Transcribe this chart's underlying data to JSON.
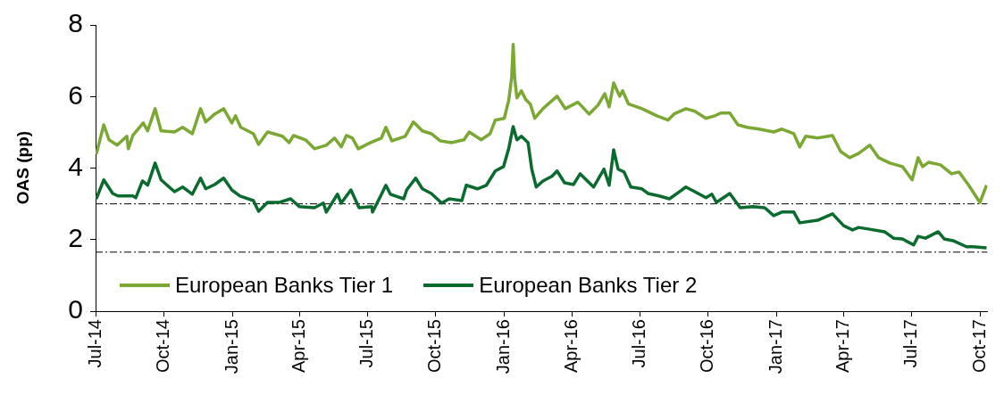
{
  "chart_data": {
    "type": "line",
    "ylabel": "OAS (pp)",
    "xlim": [
      "2014-07-01",
      "2017-10-11"
    ],
    "xticks": [
      {
        "value": "2014-07-01",
        "label": "Jul-14"
      },
      {
        "value": "2014-10-01",
        "label": "Oct-14"
      },
      {
        "value": "2015-01-01",
        "label": "Jan-15"
      },
      {
        "value": "2015-04-01",
        "label": "Apr-15"
      },
      {
        "value": "2015-07-01",
        "label": "Jul-15"
      },
      {
        "value": "2015-10-01",
        "label": "Oct-15"
      },
      {
        "value": "2016-01-01",
        "label": "Jan-16"
      },
      {
        "value": "2016-04-01",
        "label": "Apr-16"
      },
      {
        "value": "2016-07-01",
        "label": "Jul-16"
      },
      {
        "value": "2016-10-01",
        "label": "Oct-16"
      },
      {
        "value": "2017-01-01",
        "label": "Jan-17"
      },
      {
        "value": "2017-04-01",
        "label": "Apr-17"
      },
      {
        "value": "2017-07-01",
        "label": "Jul-17"
      },
      {
        "value": "2017-10-01",
        "label": "Oct-17"
      }
    ],
    "ylim": [
      0,
      8
    ],
    "yticks": [
      0,
      2,
      4,
      6,
      8
    ],
    "grid": false,
    "legend": "bottom left",
    "ref_lines": [
      {
        "axis": "y",
        "value": 3.0,
        "color": "#000000",
        "line_style": "dashed"
      },
      {
        "axis": "y",
        "value": 1.65,
        "color": "#000000",
        "line_style": "dashed"
      }
    ],
    "series": [
      {
        "name": "European Banks Tier 1",
        "color": "#7aa832",
        "x": [
          "2014-07-02",
          "2014-07-12",
          "2014-07-19",
          "2014-07-30",
          "2014-08-12",
          "2014-08-14",
          "2014-08-20",
          "2014-09-03",
          "2014-09-09",
          "2014-09-19",
          "2014-09-27",
          "2014-10-15",
          "2014-10-26",
          "2014-11-08",
          "2014-11-19",
          "2014-11-26",
          "2014-12-08",
          "2014-12-20",
          "2014-12-31",
          "2015-01-05",
          "2015-01-12",
          "2015-01-29",
          "2015-02-05",
          "2015-02-17",
          "2015-03-09",
          "2015-03-18",
          "2015-03-24",
          "2015-04-09",
          "2015-04-21",
          "2015-05-07",
          "2015-05-18",
          "2015-05-27",
          "2015-06-03",
          "2015-06-11",
          "2015-06-19",
          "2015-07-05",
          "2015-07-20",
          "2015-07-26",
          "2015-08-03",
          "2015-08-21",
          "2015-09-01",
          "2015-09-13",
          "2015-09-25",
          "2015-10-07",
          "2015-10-22",
          "2015-11-08",
          "2015-11-15",
          "2015-12-01",
          "2015-12-13",
          "2015-12-20",
          "2016-01-01",
          "2016-01-07",
          "2016-01-11",
          "2016-01-13",
          "2016-01-15",
          "2016-01-18",
          "2016-01-24",
          "2016-01-30",
          "2016-02-05",
          "2016-02-11",
          "2016-02-22",
          "2016-03-12",
          "2016-03-23",
          "2016-04-09",
          "2016-04-24",
          "2016-05-06",
          "2016-05-15",
          "2016-05-21",
          "2016-05-27",
          "2016-06-04",
          "2016-06-08",
          "2016-06-16",
          "2016-07-04",
          "2016-07-24",
          "2016-08-08",
          "2016-08-16",
          "2016-09-01",
          "2016-09-13",
          "2016-09-28",
          "2016-10-10",
          "2016-10-18",
          "2016-10-30",
          "2016-11-10",
          "2016-11-22",
          "2016-12-08",
          "2016-12-28",
          "2017-01-08",
          "2017-01-24",
          "2017-02-01",
          "2017-02-09",
          "2017-02-25",
          "2017-03-17",
          "2017-03-28",
          "2017-04-09",
          "2017-04-21",
          "2017-05-06",
          "2017-05-18",
          "2017-06-02",
          "2017-06-19",
          "2017-07-02",
          "2017-07-10",
          "2017-07-16",
          "2017-07-24",
          "2017-08-09",
          "2017-08-24",
          "2017-09-03",
          "2017-09-16",
          "2017-10-01",
          "2017-10-10"
        ],
        "values": [
          4.39,
          5.21,
          4.79,
          4.64,
          4.89,
          4.54,
          4.91,
          5.26,
          5.04,
          5.66,
          5.04,
          5.01,
          5.14,
          4.96,
          5.66,
          5.29,
          5.51,
          5.66,
          5.26,
          5.46,
          5.14,
          4.96,
          4.66,
          5.01,
          4.89,
          4.71,
          4.91,
          4.79,
          4.54,
          4.64,
          4.84,
          4.59,
          4.91,
          4.84,
          4.54,
          4.71,
          4.84,
          5.14,
          4.76,
          4.89,
          5.29,
          5.04,
          4.96,
          4.76,
          4.71,
          4.79,
          5.01,
          4.79,
          4.96,
          5.34,
          5.39,
          5.89,
          6.53,
          7.46,
          6.53,
          5.96,
          6.16,
          5.91,
          5.79,
          5.39,
          5.66,
          6.01,
          5.66,
          5.84,
          5.51,
          5.76,
          6.08,
          5.71,
          6.38,
          6.01,
          6.16,
          5.79,
          5.66,
          5.46,
          5.34,
          5.51,
          5.66,
          5.59,
          5.39,
          5.46,
          5.54,
          5.54,
          5.21,
          5.14,
          5.09,
          5.01,
          5.09,
          4.96,
          4.59,
          4.89,
          4.84,
          4.91,
          4.46,
          4.29,
          4.41,
          4.64,
          4.29,
          4.14,
          4.04,
          3.67,
          4.29,
          4.04,
          4.16,
          4.09,
          3.84,
          3.89,
          3.52,
          3.04,
          3.52
        ]
      },
      {
        "name": "European Banks Tier 2",
        "color": "#0a6b2e",
        "x": [
          "2014-07-02",
          "2014-07-12",
          "2014-07-24",
          "2014-07-31",
          "2014-08-20",
          "2014-08-24",
          "2014-09-02",
          "2014-09-09",
          "2014-09-19",
          "2014-09-27",
          "2014-10-15",
          "2014-10-26",
          "2014-11-08",
          "2014-11-19",
          "2014-11-26",
          "2014-12-08",
          "2014-12-20",
          "2014-12-31",
          "2015-01-11",
          "2015-01-29",
          "2015-02-05",
          "2015-02-17",
          "2015-03-05",
          "2015-03-20",
          "2015-04-01",
          "2015-04-21",
          "2015-05-03",
          "2015-05-07",
          "2015-05-22",
          "2015-05-27",
          "2015-06-09",
          "2015-06-20",
          "2015-07-07",
          "2015-07-08",
          "2015-07-19",
          "2015-07-26",
          "2015-08-01",
          "2015-08-19",
          "2015-08-23",
          "2015-09-04",
          "2015-09-13",
          "2015-09-25",
          "2015-10-09",
          "2015-10-19",
          "2015-11-05",
          "2015-11-11",
          "2015-11-26",
          "2015-12-08",
          "2015-12-20",
          "2015-12-31",
          "2016-01-07",
          "2016-01-13",
          "2016-01-18",
          "2016-01-24",
          "2016-02-02",
          "2016-02-07",
          "2016-02-13",
          "2016-02-22",
          "2016-03-05",
          "2016-03-12",
          "2016-03-22",
          "2016-04-03",
          "2016-04-12",
          "2016-04-30",
          "2016-05-14",
          "2016-05-21",
          "2016-05-27",
          "2016-06-02",
          "2016-06-10",
          "2016-06-19",
          "2016-07-04",
          "2016-07-12",
          "2016-07-27",
          "2016-08-10",
          "2016-09-01",
          "2016-09-13",
          "2016-09-28",
          "2016-10-06",
          "2016-10-12",
          "2016-10-30",
          "2016-11-13",
          "2016-11-30",
          "2016-12-16",
          "2016-12-28",
          "2017-01-08",
          "2017-01-24",
          "2017-02-01",
          "2017-02-25",
          "2017-03-17",
          "2017-04-01",
          "2017-04-13",
          "2017-04-21",
          "2017-05-06",
          "2017-05-26",
          "2017-06-07",
          "2017-06-19",
          "2017-07-04",
          "2017-07-10",
          "2017-07-20",
          "2017-08-06",
          "2017-08-14",
          "2017-08-26",
          "2017-09-13",
          "2017-09-22",
          "2017-10-10"
        ],
        "values": [
          3.14,
          3.67,
          3.29,
          3.22,
          3.22,
          3.17,
          3.64,
          3.52,
          4.14,
          3.67,
          3.34,
          3.47,
          3.27,
          3.72,
          3.42,
          3.54,
          3.72,
          3.39,
          3.22,
          3.09,
          2.79,
          3.04,
          3.04,
          3.14,
          2.92,
          2.89,
          3.02,
          2.77,
          3.27,
          3.02,
          3.39,
          2.89,
          2.92,
          2.77,
          3.22,
          3.52,
          3.27,
          3.14,
          3.39,
          3.72,
          3.42,
          3.29,
          3.02,
          3.14,
          3.09,
          3.52,
          3.42,
          3.52,
          3.92,
          4.04,
          4.54,
          5.16,
          4.79,
          4.89,
          4.71,
          3.97,
          3.47,
          3.64,
          3.77,
          3.92,
          3.59,
          3.54,
          3.84,
          3.47,
          3.97,
          3.52,
          4.51,
          3.97,
          3.89,
          3.47,
          3.42,
          3.29,
          3.22,
          3.14,
          3.47,
          3.34,
          3.17,
          3.27,
          3.04,
          3.29,
          2.89,
          2.92,
          2.89,
          2.67,
          2.77,
          2.77,
          2.47,
          2.54,
          2.72,
          2.39,
          2.27,
          2.34,
          2.29,
          2.22,
          2.04,
          2.02,
          1.85,
          2.09,
          2.04,
          2.22,
          2.02,
          1.97,
          1.8,
          1.8,
          1.77
        ]
      }
    ]
  }
}
